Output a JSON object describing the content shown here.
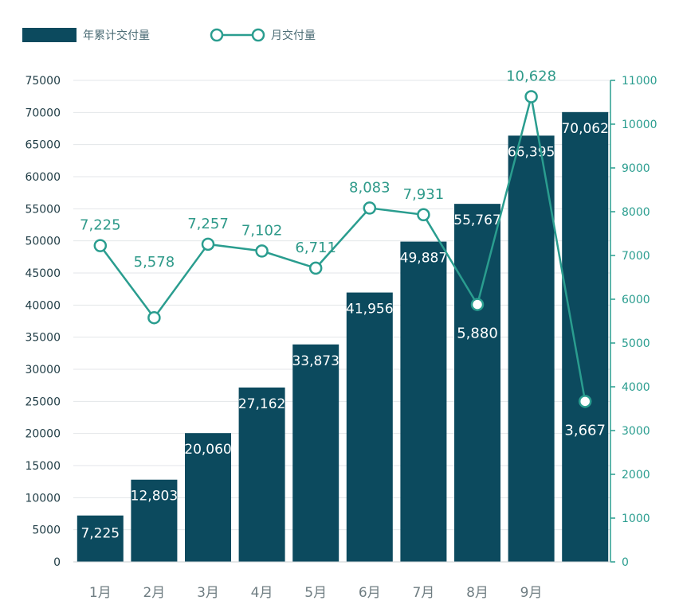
{
  "chart_data": {
    "type": "bar+line",
    "categories": [
      "1月",
      "2月",
      "3月",
      "4月",
      "5月",
      "6月",
      "7月",
      "8月",
      "9月",
      ""
    ],
    "series": [
      {
        "name": "年累计交付量",
        "type": "bar",
        "axis": "left",
        "values": [
          7225,
          12803,
          20060,
          27162,
          33873,
          41956,
          49887,
          55767,
          66395,
          70062
        ],
        "labels": [
          "7,225",
          "12,803",
          "20,060",
          "27,162",
          "33,873",
          "41,956",
          "49,887",
          "55,767",
          "66,395",
          "70,062"
        ],
        "color": "#0c4a5e"
      },
      {
        "name": "月交付量",
        "type": "line",
        "axis": "right",
        "values": [
          7225,
          5578,
          7257,
          7102,
          6711,
          8083,
          7931,
          5880,
          10628,
          3667
        ],
        "labels": [
          "7,225",
          "5,578",
          "7,257",
          "7,102",
          "6,711",
          "8,083",
          "7,931",
          "5,880",
          "10,628",
          "3,667"
        ],
        "color": "#2a9d8f"
      }
    ],
    "left_axis": {
      "range": [
        0,
        75000
      ],
      "ticks": [
        "0",
        "5000",
        "10000",
        "15000",
        "20000",
        "25000",
        "30000",
        "35000",
        "40000",
        "45000",
        "50000",
        "55000",
        "60000",
        "65000",
        "70000",
        "75000"
      ]
    },
    "right_axis": {
      "range": [
        0,
        11000
      ],
      "ticks": [
        "0",
        "1000",
        "2000",
        "3000",
        "4000",
        "5000",
        "6000",
        "7000",
        "8000",
        "9000",
        "10000",
        "11000"
      ]
    },
    "grid": true,
    "legend": "top-left"
  }
}
